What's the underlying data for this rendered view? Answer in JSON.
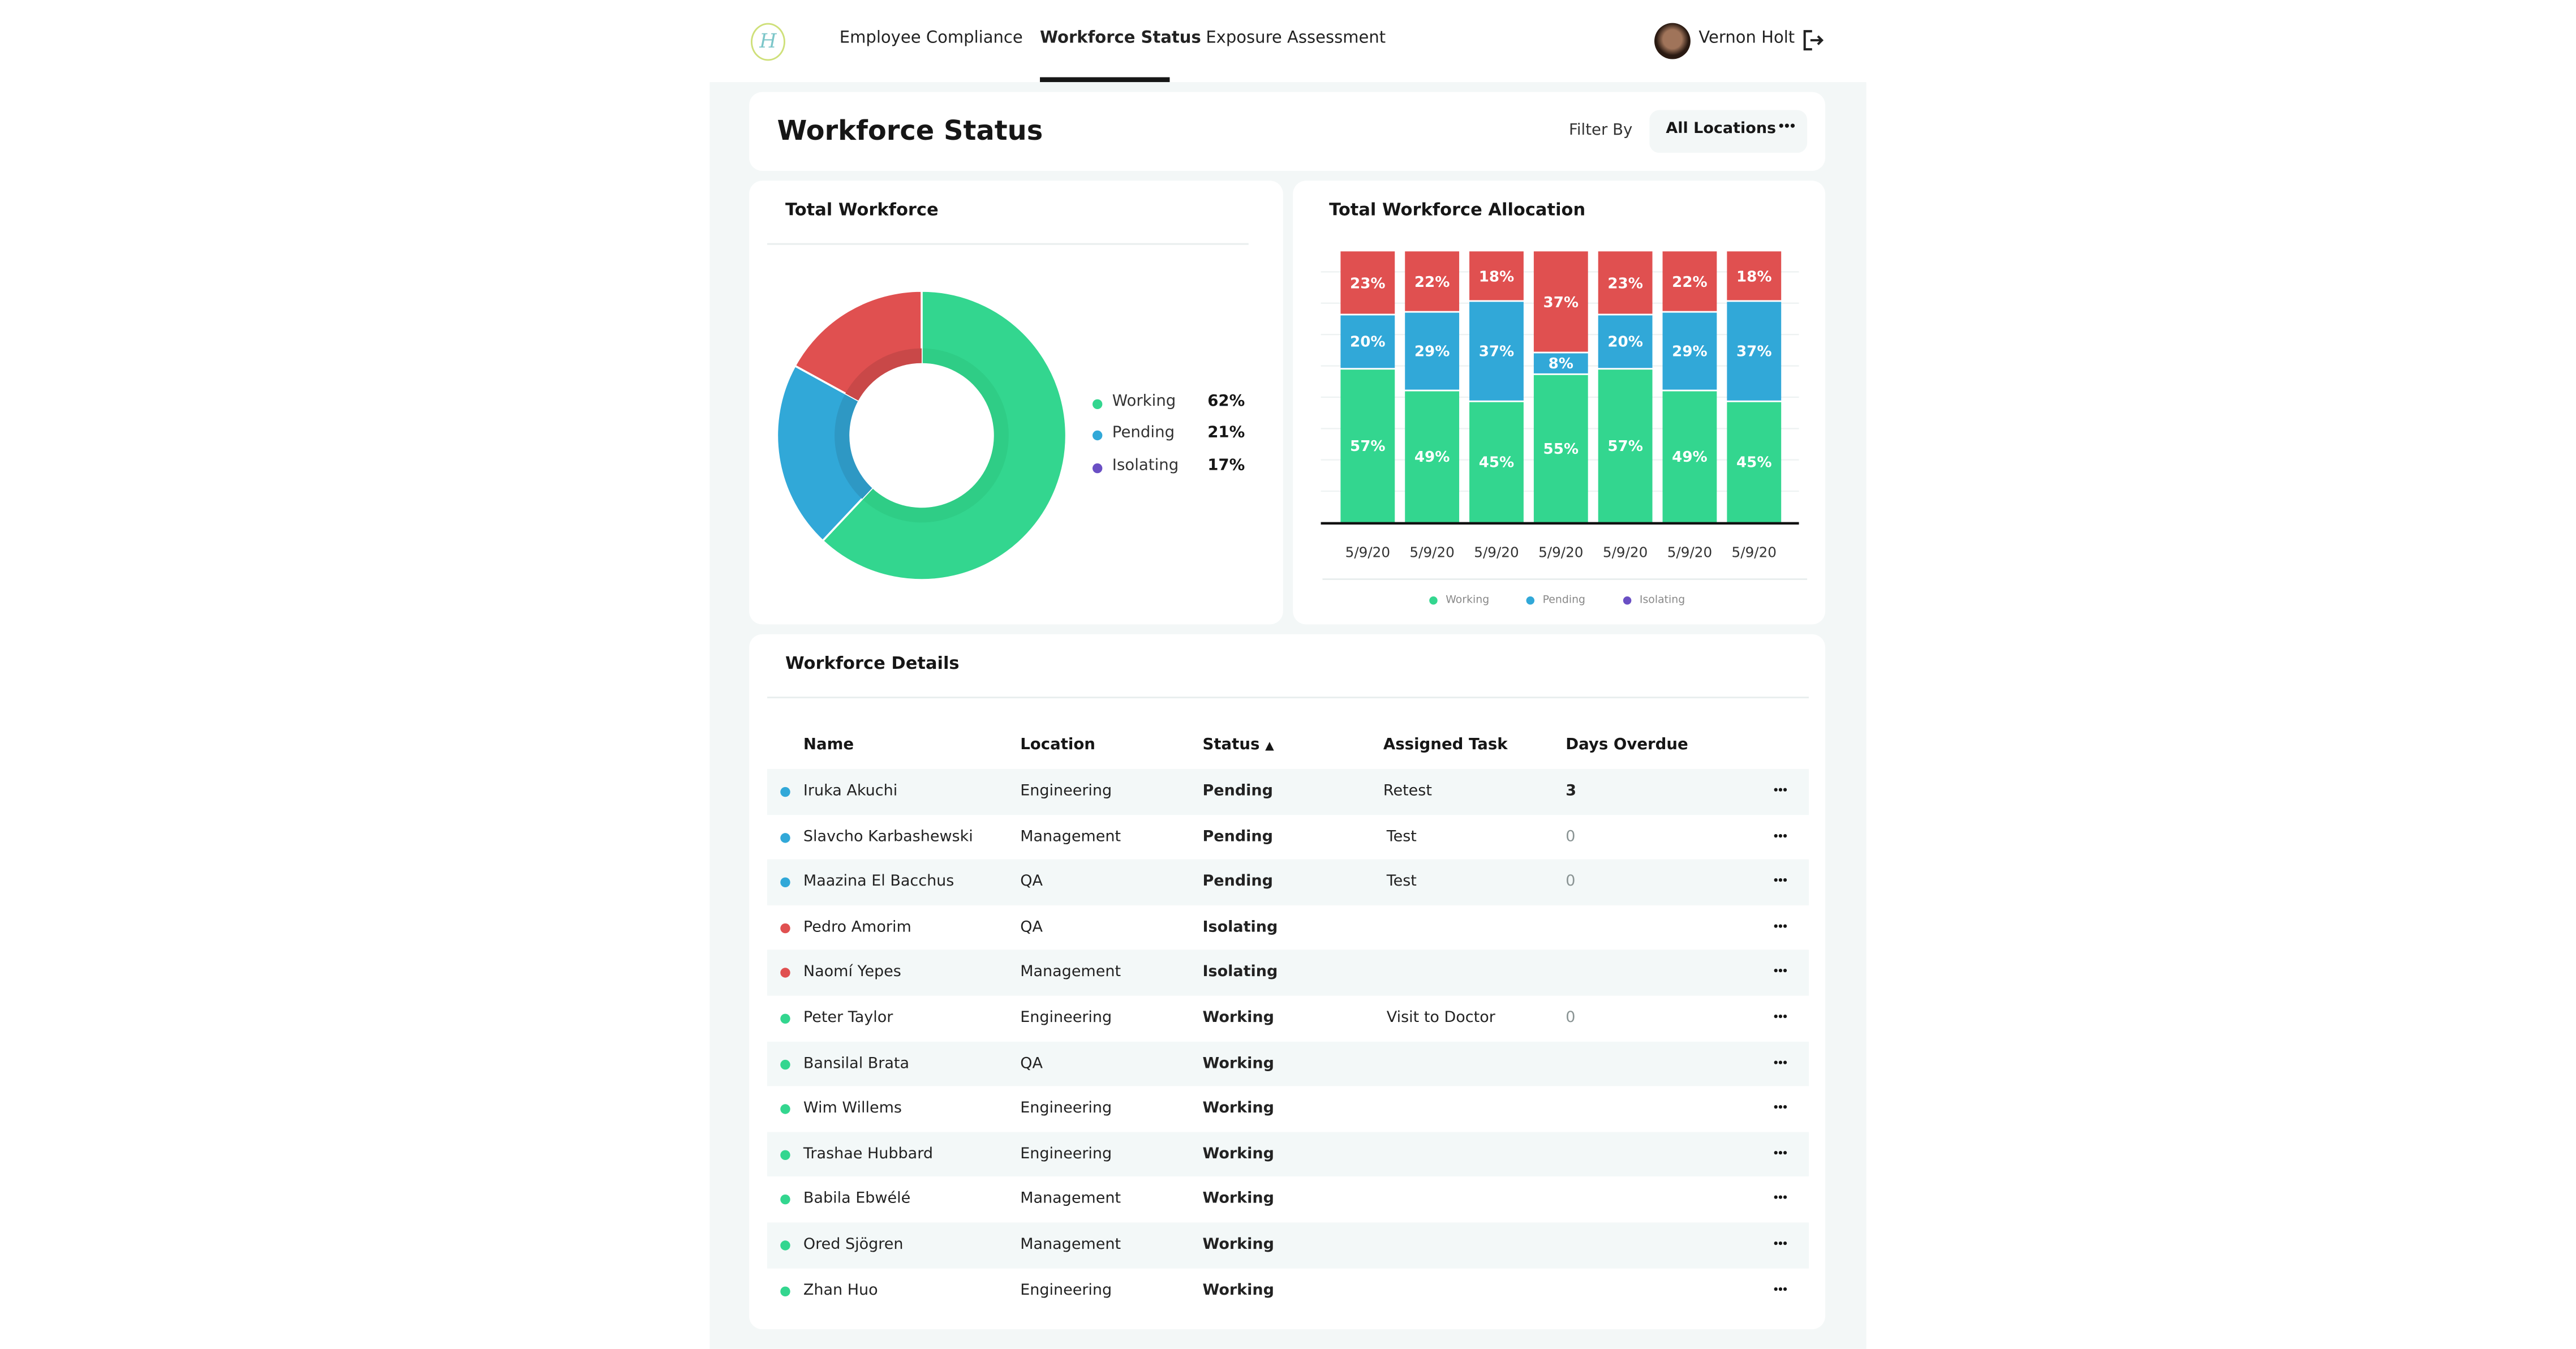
{
  "header": {
    "nav": [
      {
        "label": "Employee Compliance",
        "active": false
      },
      {
        "label": "Workforce Status",
        "active": true
      },
      {
        "label": "Exposure Assessment",
        "active": false
      }
    ],
    "user_name": "Vernon Holt",
    "logo_letter": "H"
  },
  "page": {
    "title": "Workforce Status",
    "filter_label": "Filter By",
    "filter_value": "All Locations",
    "filter_more": "•••"
  },
  "colors": {
    "working": "#33d68f",
    "pending": "#31a8d8",
    "isolating": "#e05050",
    "isolating_legend": "#6a4fc4"
  },
  "chart_data": [
    {
      "type": "pie",
      "title": "Total Workforce",
      "donut": true,
      "categories": [
        "Working",
        "Pending",
        "Isolating"
      ],
      "values": [
        62,
        21,
        17
      ],
      "value_labels": [
        "62%",
        "21%",
        "17%"
      ],
      "legend": "right"
    },
    {
      "type": "bar",
      "stacked": true,
      "title": "Total Workforce Allocation",
      "categories": [
        "5/9/20",
        "5/9/20",
        "5/9/20",
        "5/9/20",
        "5/9/20",
        "5/9/20",
        "5/9/20"
      ],
      "series": [
        {
          "name": "Working",
          "values": [
            57,
            49,
            45,
            55,
            57,
            49,
            45
          ]
        },
        {
          "name": "Pending",
          "values": [
            20,
            29,
            37,
            8,
            20,
            29,
            37
          ]
        },
        {
          "name": "Isolating",
          "values": [
            23,
            22,
            18,
            37,
            23,
            22,
            18
          ]
        }
      ],
      "ylim": [
        0,
        100
      ],
      "grid": true,
      "legend": "bottom"
    }
  ],
  "details": {
    "title": "Workforce Details",
    "columns": [
      "Name",
      "Location",
      "Status",
      "Assigned Task",
      "Days Overdue"
    ],
    "sort_indicator": "▲",
    "more": "•••",
    "rows": [
      {
        "name": "Iruka Akuchi",
        "location": "Engineering",
        "status": "Pending",
        "task": "Retest",
        "days": "3"
      },
      {
        "name": "Slavcho Karbashewski",
        "location": "Management",
        "status": "Pending",
        "task": "Test",
        "days": "0"
      },
      {
        "name": "Maazina El Bacchus",
        "location": "QA",
        "status": "Pending",
        "task": "Test",
        "days": "0"
      },
      {
        "name": "Pedro Amorim",
        "location": "QA",
        "status": "Isolating",
        "task": "",
        "days": ""
      },
      {
        "name": "Naomí Yepes",
        "location": "Management",
        "status": "Isolating",
        "task": "",
        "days": ""
      },
      {
        "name": "Peter Taylor",
        "location": "Engineering",
        "status": "Working",
        "task": "Visit to Doctor",
        "days": "0"
      },
      {
        "name": "Bansilal Brata",
        "location": "QA",
        "status": "Working",
        "task": "",
        "days": ""
      },
      {
        "name": "Wim Willems",
        "location": "Engineering",
        "status": "Working",
        "task": "",
        "days": ""
      },
      {
        "name": "Trashae Hubbard",
        "location": "Engineering",
        "status": "Working",
        "task": "",
        "days": ""
      },
      {
        "name": "Babila Ebwélé",
        "location": "Management",
        "status": "Working",
        "task": "",
        "days": ""
      },
      {
        "name": "Ored Sjögren",
        "location": "Management",
        "status": "Working",
        "task": "",
        "days": ""
      },
      {
        "name": "Zhan Huo",
        "location": "Engineering",
        "status": "Working",
        "task": "",
        "days": ""
      }
    ]
  }
}
